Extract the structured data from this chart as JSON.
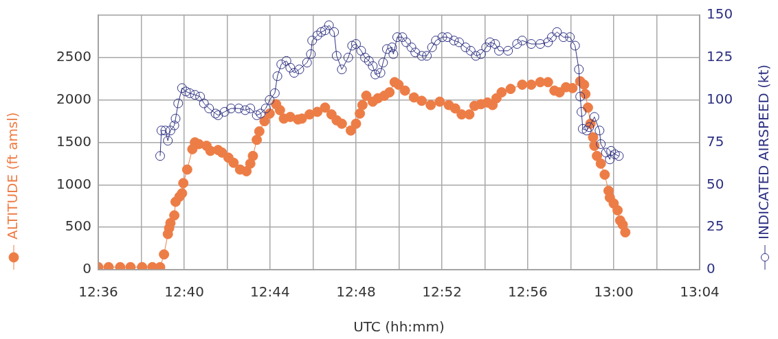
{
  "chart_data": {
    "type": "line",
    "xlabel": "UTC (hh:mm)",
    "ylabel": "ALTITUDE (ft amsl)",
    "y2label": "INDICATED AIRSPEED (kt)",
    "xlim": [
      12.6,
      13.0667
    ],
    "xticks": [
      {
        "value": 12.6,
        "label": "12:36"
      },
      {
        "value": 12.6333,
        "label": null
      },
      {
        "value": 12.6667,
        "label": "12:40"
      },
      {
        "value": 12.7,
        "label": null
      },
      {
        "value": 12.7333,
        "label": "12:44"
      },
      {
        "value": 12.7667,
        "label": null
      },
      {
        "value": 12.8,
        "label": "12:48"
      },
      {
        "value": 12.8333,
        "label": null
      },
      {
        "value": 12.8667,
        "label": "12:52"
      },
      {
        "value": 12.9,
        "label": null
      },
      {
        "value": 12.9333,
        "label": "12:56"
      },
      {
        "value": 12.9667,
        "label": null
      },
      {
        "value": 13.0,
        "label": "13:00"
      },
      {
        "value": 13.0333,
        "label": null
      },
      {
        "value": 13.0667,
        "label": "13:04"
      }
    ],
    "ylim": [
      0,
      3000
    ],
    "yticks": [
      0,
      500,
      1000,
      1500,
      2000,
      2500
    ],
    "y2lim": [
      0,
      150
    ],
    "y2ticks": [
      0,
      25,
      50,
      75,
      100,
      125,
      150
    ],
    "grid": true,
    "marker": "circle",
    "line_style": "solid",
    "series": [
      {
        "color": "#ed7d46",
        "x": [
          12.6,
          12.608,
          12.617,
          12.625,
          12.634,
          12.642,
          12.648,
          12.651,
          12.654,
          12.655,
          12.656,
          12.659,
          12.66,
          12.663,
          12.665,
          12.666,
          12.669,
          12.673,
          12.675,
          12.678,
          12.684,
          12.687,
          12.693,
          12.696,
          12.701,
          12.705,
          12.71,
          12.715,
          12.718,
          12.72,
          12.723,
          12.725,
          12.729,
          12.733,
          12.738,
          12.741,
          12.744,
          12.749,
          12.755,
          12.758,
          12.764,
          12.77,
          12.776,
          12.781,
          12.785,
          12.789,
          12.796,
          12.8,
          12.803,
          12.805,
          12.808,
          12.813,
          12.817,
          12.822,
          12.826,
          12.83,
          12.833,
          12.838,
          12.845,
          12.851,
          12.858,
          12.865,
          12.872,
          12.877,
          12.882,
          12.888,
          12.892,
          12.897,
          12.902,
          12.906,
          12.909,
          12.913,
          12.92,
          12.929,
          12.936,
          12.943,
          12.949,
          12.954,
          12.958,
          12.963,
          12.968,
          12.974,
          12.977,
          12.978,
          12.98,
          12.982,
          12.984,
          12.985,
          12.987,
          12.99,
          12.993,
          12.996,
          12.997,
          13.0,
          13.003,
          13.005,
          13.007,
          13.009
        ],
        "values": [
          30,
          30,
          30,
          30,
          30,
          30,
          30,
          180,
          420,
          490,
          550,
          640,
          800,
          860,
          900,
          1020,
          1180,
          1420,
          1500,
          1480,
          1460,
          1400,
          1410,
          1380,
          1320,
          1260,
          1180,
          1160,
          1250,
          1340,
          1530,
          1630,
          1750,
          1840,
          1950,
          1880,
          1780,
          1800,
          1770,
          1780,
          1830,
          1860,
          1910,
          1830,
          1760,
          1720,
          1640,
          1720,
          1840,
          1940,
          2050,
          1980,
          2020,
          2050,
          2090,
          2210,
          2180,
          2110,
          2030,
          1990,
          1940,
          1980,
          1940,
          1900,
          1830,
          1830,
          1930,
          1950,
          1970,
          1940,
          2020,
          2090,
          2130,
          2180,
          2180,
          2210,
          2210,
          2110,
          2090,
          2150,
          2140,
          2220,
          2180,
          2070,
          1910,
          1720,
          1560,
          1460,
          1340,
          1250,
          1120,
          930,
          850,
          780,
          700,
          580,
          530,
          440
        ]
      },
      {
        "color": "#2e3182",
        "axis": "y2",
        "x": [
          12.648,
          12.649,
          12.652,
          12.654,
          12.656,
          12.659,
          12.66,
          12.662,
          12.665,
          12.668,
          12.671,
          12.675,
          12.679,
          12.682,
          12.686,
          12.691,
          12.693,
          12.698,
          12.703,
          12.709,
          12.714,
          12.718,
          12.723,
          12.726,
          12.73,
          12.733,
          12.737,
          12.739,
          12.742,
          12.746,
          12.749,
          12.752,
          12.756,
          12.762,
          12.765,
          12.766,
          12.77,
          12.773,
          12.776,
          12.779,
          12.783,
          12.785,
          12.789,
          12.794,
          12.797,
          12.8,
          12.804,
          12.807,
          12.81,
          12.813,
          12.815,
          12.819,
          12.821,
          12.824,
          12.828,
          12.829,
          12.832,
          12.836,
          12.839,
          12.843,
          12.846,
          12.851,
          12.855,
          12.859,
          12.862,
          12.867,
          12.871,
          12.876,
          12.88,
          12.885,
          12.889,
          12.893,
          12.897,
          12.901,
          12.904,
          12.908,
          12.911,
          12.918,
          12.925,
          12.929,
          12.936,
          12.943,
          12.949,
          12.952,
          12.956,
          12.961,
          12.966,
          12.97,
          12.973,
          12.974,
          12.975,
          12.976,
          12.979,
          12.981,
          12.985,
          12.989,
          12.99,
          12.994,
          12.997,
          12.998,
          13.001,
          13.004
        ],
        "values": [
          67,
          82,
          82,
          76,
          82,
          85,
          89,
          98,
          107,
          105,
          104,
          103,
          102,
          98,
          95,
          92,
          91,
          93,
          95,
          95,
          94,
          95,
          91,
          92,
          95,
          100,
          104,
          114,
          121,
          123,
          119,
          116,
          118,
          122,
          127,
          135,
          138,
          140,
          141,
          144,
          140,
          126,
          118,
          125,
          132,
          133,
          129,
          125,
          123,
          120,
          115,
          116,
          122,
          130,
          131,
          127,
          137,
          137,
          134,
          131,
          128,
          126,
          126,
          131,
          135,
          137,
          137,
          135,
          134,
          131,
          129,
          126,
          127,
          131,
          134,
          133,
          129,
          129,
          133,
          135,
          133,
          133,
          134,
          137,
          140,
          137,
          137,
          132,
          118,
          102,
          93,
          83,
          82,
          84,
          90,
          82,
          74,
          69,
          65,
          70,
          68,
          67
        ]
      }
    ]
  }
}
